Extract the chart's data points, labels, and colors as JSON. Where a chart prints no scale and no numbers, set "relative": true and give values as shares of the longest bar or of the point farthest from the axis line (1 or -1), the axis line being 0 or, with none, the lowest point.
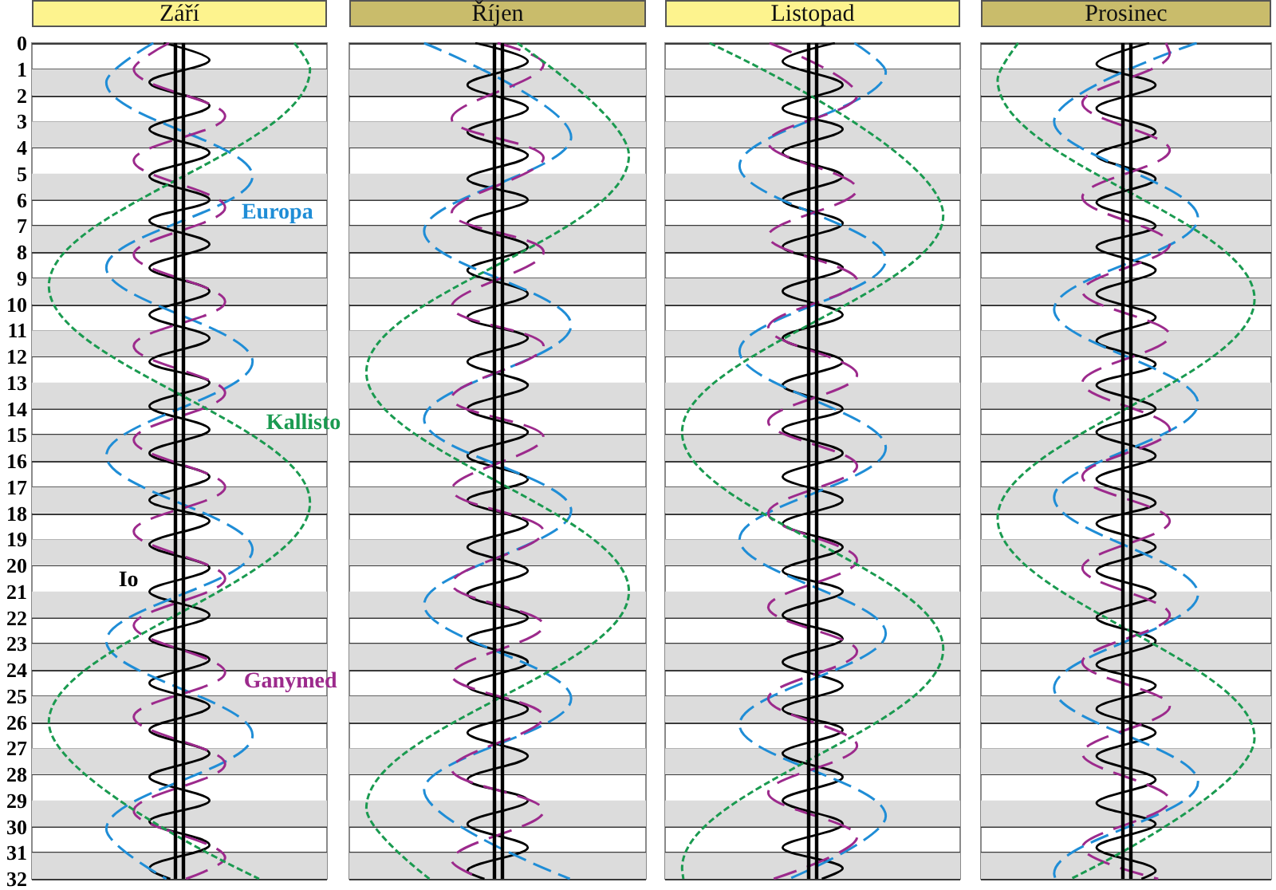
{
  "chart_data": [
    {
      "type": "line",
      "orientation": "horizontal",
      "relative": true,
      "title": "Září",
      "ylim": [
        32,
        0
      ],
      "yticks": [
        0,
        1,
        2,
        3,
        4,
        5,
        6,
        7,
        8,
        9,
        10,
        11,
        12,
        13,
        14,
        15,
        16,
        17,
        18,
        19,
        20,
        21,
        22,
        23,
        24,
        25,
        26,
        27,
        28,
        29,
        30,
        31,
        32
      ],
      "grid": "y",
      "tick_labels": "y",
      "marker": "none",
      "bands": [
        {
          "axis": "y",
          "from": 1,
          "to": 2,
          "color": "#dcdcdc"
        },
        {
          "axis": "y",
          "from": 3,
          "to": 4,
          "color": "#dcdcdc"
        },
        {
          "axis": "y",
          "from": 5,
          "to": 6,
          "color": "#dcdcdc"
        },
        {
          "axis": "y",
          "from": 7,
          "to": 8,
          "color": "#dcdcdc"
        },
        {
          "axis": "y",
          "from": 9,
          "to": 10,
          "color": "#dcdcdc"
        },
        {
          "axis": "y",
          "from": 11,
          "to": 12,
          "color": "#dcdcdc"
        },
        {
          "axis": "y",
          "from": 13,
          "to": 14,
          "color": "#dcdcdc"
        },
        {
          "axis": "y",
          "from": 15,
          "to": 16,
          "color": "#dcdcdc"
        },
        {
          "axis": "y",
          "from": 17,
          "to": 18,
          "color": "#dcdcdc"
        },
        {
          "axis": "y",
          "from": 19,
          "to": 20,
          "color": "#dcdcdc"
        },
        {
          "axis": "y",
          "from": 21,
          "to": 22,
          "color": "#dcdcdc"
        },
        {
          "axis": "y",
          "from": 23,
          "to": 24,
          "color": "#dcdcdc"
        },
        {
          "axis": "y",
          "from": 25,
          "to": 26,
          "color": "#dcdcdc"
        },
        {
          "axis": "y",
          "from": 27,
          "to": 28,
          "color": "#dcdcdc"
        },
        {
          "axis": "y",
          "from": 29,
          "to": 30,
          "color": "#dcdcdc"
        },
        {
          "axis": "y",
          "from": 31,
          "to": 32,
          "color": "#dcdcdc"
        }
      ],
      "ref_lines": [
        {
          "axis": "x",
          "value": -0.033,
          "color": "#000000"
        },
        {
          "axis": "x",
          "value": 0.033,
          "color": "#000000"
        }
      ],
      "series": [
        {
          "name": "Io",
          "color": "#000000",
          "line_style": "solid",
          "x": [
            0,
            0.65,
            1.5,
            2.4,
            3.3,
            4.2,
            5.1,
            6.0,
            6.8,
            7.7,
            8.6,
            9.5,
            10.4,
            11.3,
            12.2,
            13.0,
            13.9,
            14.8,
            15.7,
            16.6,
            17.5,
            18.3,
            19.2,
            20.1,
            21.0,
            21.9,
            22.8,
            23.6,
            24.5,
            25.4,
            26.3,
            27.2,
            28.1,
            29.0,
            29.8,
            30.7,
            31.6,
            32
          ],
          "values": [
            -0.12,
            0.23,
            -0.23,
            0.23,
            -0.23,
            0.23,
            -0.23,
            0.23,
            -0.23,
            0.23,
            -0.23,
            0.23,
            -0.23,
            0.23,
            -0.23,
            0.23,
            -0.23,
            0.23,
            -0.23,
            0.23,
            -0.23,
            0.23,
            -0.23,
            0.23,
            -0.23,
            0.23,
            -0.23,
            0.23,
            -0.23,
            0.23,
            -0.23,
            0.23,
            -0.23,
            0.23,
            -0.23,
            0.23,
            -0.23,
            -0.07
          ]
        },
        {
          "name": "Europa",
          "color": "#1f8dd6",
          "line_style": "dashed",
          "x": [
            0,
            1.5,
            5.1,
            8.6,
            12.2,
            15.8,
            19.4,
            22.9,
            26.5,
            30.1,
            32
          ],
          "values": [
            -0.2,
            -0.56,
            0.56,
            -0.56,
            0.56,
            -0.56,
            0.56,
            -0.56,
            0.56,
            -0.56,
            -0.1
          ]
        },
        {
          "name": "Ganymed",
          "color": "#9c2a8c",
          "line_style": "dashed",
          "x": [
            0,
            1.0,
            2.8,
            4.5,
            6.3,
            8.1,
            9.9,
            11.6,
            13.4,
            15.2,
            17.0,
            18.7,
            20.5,
            22.3,
            24.1,
            25.8,
            27.6,
            29.4,
            31.2,
            32
          ],
          "values": [
            -0.08,
            -0.35,
            0.35,
            -0.35,
            0.35,
            -0.35,
            0.35,
            -0.35,
            0.35,
            -0.35,
            0.35,
            -0.35,
            0.35,
            -0.35,
            0.35,
            -0.35,
            0.35,
            -0.35,
            0.35,
            0.05
          ]
        },
        {
          "name": "Kallisto",
          "color": "#1a9a50",
          "line_style": "dashed",
          "x": [
            0,
            1.0,
            9.3,
            17.6,
            26.0,
            32
          ],
          "values": [
            0.88,
            1,
            -1,
            1,
            -1,
            0.61
          ]
        }
      ]
    },
    {
      "type": "line",
      "orientation": "horizontal",
      "relative": true,
      "title": "Říjen",
      "ylim": [
        32,
        0
      ],
      "yticks": [
        0,
        1,
        2,
        3,
        4,
        5,
        6,
        7,
        8,
        9,
        10,
        11,
        12,
        13,
        14,
        15,
        16,
        17,
        18,
        19,
        20,
        21,
        22,
        23,
        24,
        25,
        26,
        27,
        28,
        29,
        30,
        31,
        32
      ],
      "grid": "y",
      "tick_labels": false,
      "marker": "none",
      "bands": [
        {
          "axis": "y",
          "from": 1,
          "to": 2,
          "color": "#dcdcdc"
        },
        {
          "axis": "y",
          "from": 3,
          "to": 4,
          "color": "#dcdcdc"
        },
        {
          "axis": "y",
          "from": 5,
          "to": 6,
          "color": "#dcdcdc"
        },
        {
          "axis": "y",
          "from": 7,
          "to": 8,
          "color": "#dcdcdc"
        },
        {
          "axis": "y",
          "from": 9,
          "to": 10,
          "color": "#dcdcdc"
        },
        {
          "axis": "y",
          "from": 11,
          "to": 12,
          "color": "#dcdcdc"
        },
        {
          "axis": "y",
          "from": 13,
          "to": 14,
          "color": "#dcdcdc"
        },
        {
          "axis": "y",
          "from": 15,
          "to": 16,
          "color": "#dcdcdc"
        },
        {
          "axis": "y",
          "from": 17,
          "to": 18,
          "color": "#dcdcdc"
        },
        {
          "axis": "y",
          "from": 19,
          "to": 20,
          "color": "#dcdcdc"
        },
        {
          "axis": "y",
          "from": 21,
          "to": 22,
          "color": "#dcdcdc"
        },
        {
          "axis": "y",
          "from": 23,
          "to": 24,
          "color": "#dcdcdc"
        },
        {
          "axis": "y",
          "from": 25,
          "to": 26,
          "color": "#dcdcdc"
        },
        {
          "axis": "y",
          "from": 27,
          "to": 28,
          "color": "#dcdcdc"
        },
        {
          "axis": "y",
          "from": 29,
          "to": 30,
          "color": "#dcdcdc"
        },
        {
          "axis": "y",
          "from": 31,
          "to": 32,
          "color": "#dcdcdc"
        }
      ],
      "ref_lines": [
        {
          "axis": "x",
          "value": -0.033,
          "color": "#000000"
        },
        {
          "axis": "x",
          "value": 0.033,
          "color": "#000000"
        }
      ],
      "series": [
        {
          "color": "#000000",
          "line_style": "solid",
          "x": [
            0,
            0.7,
            1.6,
            2.5,
            3.4,
            4.3,
            5.2,
            6.0,
            6.9,
            7.8,
            8.7,
            9.6,
            10.5,
            11.3,
            12.2,
            13.1,
            14.0,
            14.9,
            15.8,
            16.7,
            17.5,
            18.4,
            19.3,
            20.2,
            21.1,
            22.0,
            22.8,
            23.7,
            24.6,
            25.5,
            26.4,
            27.3,
            28.2,
            29.0,
            29.9,
            30.8,
            31.7,
            32
          ],
          "values": [
            -0.17,
            0.23,
            -0.23,
            0.23,
            -0.23,
            0.23,
            -0.23,
            0.23,
            -0.23,
            0.23,
            -0.23,
            0.23,
            -0.23,
            0.23,
            -0.23,
            0.23,
            -0.23,
            0.23,
            -0.23,
            0.23,
            -0.23,
            0.23,
            -0.23,
            0.23,
            -0.23,
            0.23,
            -0.23,
            0.23,
            -0.23,
            0.23,
            -0.23,
            0.23,
            -0.23,
            0.23,
            -0.23,
            0.23,
            -0.23,
            -0.1
          ]
        },
        {
          "color": "#1f8dd6",
          "line_style": "dashed",
          "x": [
            0,
            3.6,
            7.2,
            10.8,
            14.4,
            17.9,
            21.5,
            25.1,
            28.6,
            32
          ],
          "values": [
            -0.56,
            0.56,
            -0.56,
            0.56,
            -0.56,
            0.56,
            -0.56,
            0.56,
            -0.56,
            0.55
          ]
        },
        {
          "color": "#9c2a8c",
          "line_style": "dashed",
          "x": [
            0,
            0.8,
            2.9,
            4.4,
            6.5,
            8.0,
            10.1,
            11.6,
            13.6,
            15.1,
            17.1,
            18.7,
            20.7,
            22.3,
            24.2,
            25.8,
            27.8,
            29.4,
            31.3,
            32
          ],
          "values": [
            0,
            0.35,
            -0.35,
            0.35,
            -0.35,
            0.35,
            -0.35,
            0.35,
            -0.35,
            0.35,
            -0.35,
            0.35,
            -0.35,
            0.35,
            -0.35,
            0.35,
            -0.35,
            0.35,
            -0.35,
            -0.12
          ]
        },
        {
          "color": "#1a9a50",
          "line_style": "dashed",
          "x": [
            0,
            4.3,
            12.6,
            21.0,
            29.3,
            32
          ],
          "values": [
            0.15,
            1,
            -1,
            1,
            -1,
            -0.52
          ]
        }
      ]
    },
    {
      "type": "line",
      "orientation": "horizontal",
      "relative": true,
      "title": "Listopad",
      "ylim": [
        32,
        0
      ],
      "yticks": [
        0,
        1,
        2,
        3,
        4,
        5,
        6,
        7,
        8,
        9,
        10,
        11,
        12,
        13,
        14,
        15,
        16,
        17,
        18,
        19,
        20,
        21,
        22,
        23,
        24,
        25,
        26,
        27,
        28,
        29,
        30,
        31,
        32
      ],
      "grid": "y",
      "tick_labels": false,
      "marker": "none",
      "bands": [
        {
          "axis": "y",
          "from": 1,
          "to": 2,
          "color": "#dcdcdc"
        },
        {
          "axis": "y",
          "from": 3,
          "to": 4,
          "color": "#dcdcdc"
        },
        {
          "axis": "y",
          "from": 5,
          "to": 6,
          "color": "#dcdcdc"
        },
        {
          "axis": "y",
          "from": 7,
          "to": 8,
          "color": "#dcdcdc"
        },
        {
          "axis": "y",
          "from": 9,
          "to": 10,
          "color": "#dcdcdc"
        },
        {
          "axis": "y",
          "from": 11,
          "to": 12,
          "color": "#dcdcdc"
        },
        {
          "axis": "y",
          "from": 13,
          "to": 14,
          "color": "#dcdcdc"
        },
        {
          "axis": "y",
          "from": 15,
          "to": 16,
          "color": "#dcdcdc"
        },
        {
          "axis": "y",
          "from": 17,
          "to": 18,
          "color": "#dcdcdc"
        },
        {
          "axis": "y",
          "from": 19,
          "to": 20,
          "color": "#dcdcdc"
        },
        {
          "axis": "y",
          "from": 21,
          "to": 22,
          "color": "#dcdcdc"
        },
        {
          "axis": "y",
          "from": 23,
          "to": 24,
          "color": "#dcdcdc"
        },
        {
          "axis": "y",
          "from": 25,
          "to": 26,
          "color": "#dcdcdc"
        },
        {
          "axis": "y",
          "from": 27,
          "to": 28,
          "color": "#dcdcdc"
        },
        {
          "axis": "y",
          "from": 29,
          "to": 30,
          "color": "#dcdcdc"
        },
        {
          "axis": "y",
          "from": 31,
          "to": 32,
          "color": "#dcdcdc"
        }
      ],
      "ref_lines": [
        {
          "axis": "x",
          "value": -0.033,
          "color": "#000000"
        },
        {
          "axis": "x",
          "value": 0.033,
          "color": "#000000"
        }
      ],
      "series": [
        {
          "color": "#000000",
          "line_style": "solid",
          "x": [
            0,
            0.7,
            1.6,
            2.5,
            3.3,
            4.2,
            5.1,
            6.0,
            6.9,
            7.8,
            8.6,
            9.5,
            10.4,
            11.3,
            12.2,
            13.1,
            14.0,
            14.8,
            15.7,
            16.6,
            17.5,
            18.4,
            19.3,
            20.2,
            21.0,
            21.9,
            22.8,
            23.7,
            24.6,
            25.5,
            26.3,
            27.2,
            28.1,
            29.0,
            29.9,
            30.8,
            31.6,
            32
          ],
          "values": [
            0.17,
            -0.23,
            0.23,
            -0.23,
            0.23,
            -0.23,
            0.23,
            -0.23,
            0.23,
            -0.23,
            0.23,
            -0.23,
            0.23,
            -0.23,
            0.23,
            -0.23,
            0.23,
            -0.23,
            0.23,
            -0.23,
            0.23,
            -0.23,
            0.23,
            -0.23,
            0.23,
            -0.23,
            0.23,
            -0.23,
            0.23,
            -0.23,
            0.23,
            -0.23,
            0.23,
            -0.23,
            0.23,
            -0.23,
            0.23,
            0.07
          ]
        },
        {
          "color": "#1f8dd6",
          "line_style": "dashed",
          "x": [
            0,
            1.1,
            4.7,
            8.3,
            11.8,
            15.5,
            19.0,
            22.6,
            26.1,
            29.6,
            32
          ],
          "values": [
            0.32,
            0.56,
            -0.56,
            0.56,
            -0.56,
            0.56,
            -0.56,
            0.56,
            -0.56,
            0.56,
            -0.18
          ]
        },
        {
          "color": "#9c2a8c",
          "line_style": "dashed",
          "x": [
            0,
            2.0,
            3.8,
            5.6,
            7.4,
            9.1,
            10.9,
            12.7,
            14.5,
            16.2,
            18.0,
            19.8,
            21.6,
            23.3,
            25.1,
            26.9,
            28.7,
            30.4,
            32
          ],
          "values": [
            -0.33,
            0.34,
            -0.34,
            0.34,
            -0.34,
            0.34,
            -0.34,
            0.34,
            -0.34,
            0.34,
            -0.34,
            0.34,
            -0.34,
            0.34,
            -0.34,
            0.34,
            -0.34,
            0.34,
            -0.3
          ]
        },
        {
          "color": "#1a9a50",
          "line_style": "dashed",
          "x": [
            0,
            6.6,
            14.9,
            23.2,
            31.6,
            32
          ],
          "values": [
            -0.79,
            1,
            -1,
            1,
            -1,
            -0.99
          ]
        }
      ]
    },
    {
      "type": "line",
      "orientation": "horizontal",
      "relative": true,
      "title": "Prosinec",
      "ylim": [
        32,
        0
      ],
      "yticks": [
        0,
        1,
        2,
        3,
        4,
        5,
        6,
        7,
        8,
        9,
        10,
        11,
        12,
        13,
        14,
        15,
        16,
        17,
        18,
        19,
        20,
        21,
        22,
        23,
        24,
        25,
        26,
        27,
        28,
        29,
        30,
        31,
        32
      ],
      "grid": "y",
      "tick_labels": false,
      "marker": "none",
      "bands": [
        {
          "axis": "y",
          "from": 1,
          "to": 2,
          "color": "#dcdcdc"
        },
        {
          "axis": "y",
          "from": 3,
          "to": 4,
          "color": "#dcdcdc"
        },
        {
          "axis": "y",
          "from": 5,
          "to": 6,
          "color": "#dcdcdc"
        },
        {
          "axis": "y",
          "from": 7,
          "to": 8,
          "color": "#dcdcdc"
        },
        {
          "axis": "y",
          "from": 9,
          "to": 10,
          "color": "#dcdcdc"
        },
        {
          "axis": "y",
          "from": 11,
          "to": 12,
          "color": "#dcdcdc"
        },
        {
          "axis": "y",
          "from": 13,
          "to": 14,
          "color": "#dcdcdc"
        },
        {
          "axis": "y",
          "from": 15,
          "to": 16,
          "color": "#dcdcdc"
        },
        {
          "axis": "y",
          "from": 17,
          "to": 18,
          "color": "#dcdcdc"
        },
        {
          "axis": "y",
          "from": 19,
          "to": 20,
          "color": "#dcdcdc"
        },
        {
          "axis": "y",
          "from": 21,
          "to": 22,
          "color": "#dcdcdc"
        },
        {
          "axis": "y",
          "from": 23,
          "to": 24,
          "color": "#dcdcdc"
        },
        {
          "axis": "y",
          "from": 25,
          "to": 26,
          "color": "#dcdcdc"
        },
        {
          "axis": "y",
          "from": 27,
          "to": 28,
          "color": "#dcdcdc"
        },
        {
          "axis": "y",
          "from": 29,
          "to": 30,
          "color": "#dcdcdc"
        },
        {
          "axis": "y",
          "from": 31,
          "to": 32,
          "color": "#dcdcdc"
        }
      ],
      "ref_lines": [
        {
          "axis": "x",
          "value": -0.033,
          "color": "#000000"
        },
        {
          "axis": "x",
          "value": 0.033,
          "color": "#000000"
        }
      ],
      "series": [
        {
          "color": "#000000",
          "line_style": "solid",
          "x": [
            0,
            0.8,
            1.6,
            2.5,
            3.4,
            4.3,
            5.2,
            6.1,
            7.0,
            7.8,
            8.7,
            9.6,
            10.5,
            11.4,
            12.3,
            13.1,
            14.0,
            14.9,
            15.8,
            16.7,
            17.6,
            18.4,
            19.3,
            20.2,
            21.1,
            22.0,
            22.9,
            23.8,
            24.6,
            25.5,
            26.4,
            27.3,
            28.2,
            29.1,
            29.9,
            30.8,
            31.7,
            32
          ],
          "values": [
            0.18,
            -0.23,
            0.23,
            -0.23,
            0.23,
            -0.23,
            0.23,
            -0.23,
            0.23,
            -0.23,
            0.23,
            -0.23,
            0.23,
            -0.23,
            0.23,
            -0.23,
            0.23,
            -0.23,
            0.23,
            -0.23,
            0.23,
            -0.23,
            0.23,
            -0.23,
            0.23,
            -0.23,
            0.23,
            -0.23,
            0.23,
            -0.23,
            0.23,
            -0.23,
            0.23,
            -0.23,
            0.23,
            -0.23,
            0.23,
            0.12
          ]
        },
        {
          "color": "#1f8dd6",
          "line_style": "dashed",
          "x": [
            0,
            3.0,
            6.7,
            10.2,
            13.8,
            17.4,
            21.1,
            24.7,
            28.3,
            31.8,
            32
          ],
          "values": [
            0.55,
            -0.56,
            0.56,
            -0.56,
            0.56,
            -0.56,
            0.56,
            -0.56,
            0.56,
            -0.56,
            -0.55
          ]
        },
        {
          "color": "#9c2a8c",
          "line_style": "dashed",
          "x": [
            0,
            0.4,
            2.3,
            4.1,
            5.9,
            7.7,
            9.5,
            11.2,
            13.0,
            14.8,
            16.6,
            18.3,
            20.1,
            21.9,
            23.7,
            25.4,
            27.2,
            29.0,
            30.8,
            32
          ],
          "values": [
            0.31,
            0.34,
            -0.34,
            0.34,
            -0.34,
            0.34,
            -0.34,
            0.34,
            -0.34,
            0.34,
            -0.34,
            0.34,
            -0.34,
            0.34,
            -0.34,
            0.34,
            -0.34,
            0.34,
            -0.34,
            0.25
          ]
        },
        {
          "color": "#1a9a50",
          "line_style": "dashed",
          "x": [
            0,
            1.4,
            9.8,
            18.2,
            26.6,
            32
          ],
          "values": [
            -0.84,
            -1,
            1,
            -1,
            1,
            -0.43
          ]
        }
      ]
    }
  ]
}
